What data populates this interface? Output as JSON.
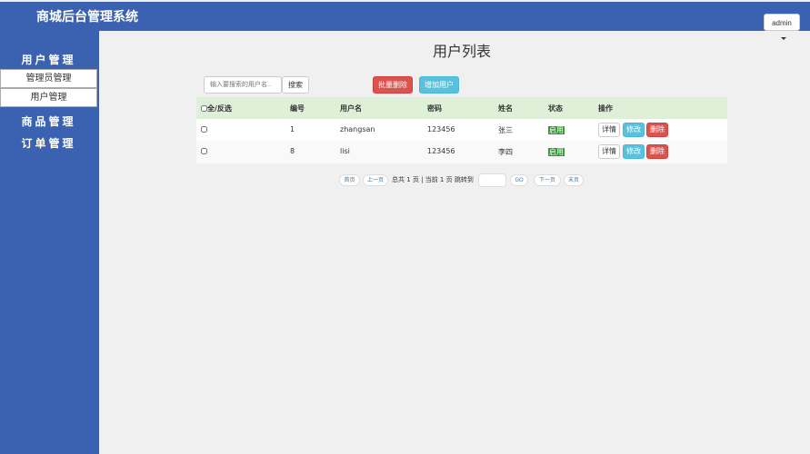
{
  "header": {
    "title": "商城后台管理系统",
    "user": "admin"
  },
  "sidebar": {
    "sections": [
      {
        "title": "用户管理",
        "items": [
          "管理员管理",
          "用户管理"
        ]
      },
      {
        "title": "商品管理"
      },
      {
        "title": "订单管理"
      }
    ]
  },
  "main": {
    "title": "用户列表",
    "search": {
      "placeholder": "输入要搜索的用户名..",
      "button": "搜索"
    },
    "actions": [
      "批量删除",
      "增加用户"
    ],
    "table": {
      "columns": [
        "全/反选",
        "编号",
        "用户名",
        "密码",
        "姓名",
        "状态",
        "操作"
      ],
      "rows": [
        [
          "1",
          "zhangsan",
          "123456",
          "张三",
          "启用"
        ],
        [
          "8",
          "lisi",
          "123456",
          "李四",
          "启用"
        ]
      ],
      "row_actions": [
        "详情",
        "修改",
        "删除"
      ]
    },
    "pagination": {
      "first": "首页",
      "prev": "上一页",
      "info": "总共 1 页 | 当前 1 页 跳转到",
      "go": "GO",
      "next": "下一页",
      "last": "末页"
    }
  }
}
